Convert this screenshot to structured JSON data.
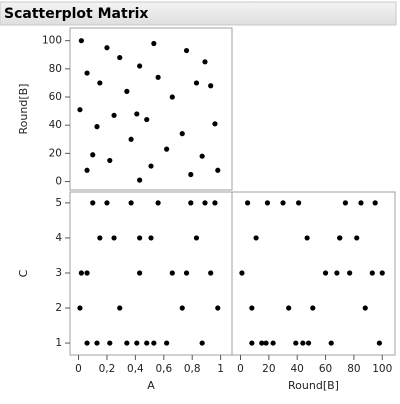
{
  "chart_data": {
    "type": "scatter_matrix",
    "title": "Scatterplot Matrix",
    "variables": [
      {
        "name": "A",
        "values": [
          0.02,
          0.06,
          0.01,
          0.06,
          0.1,
          0.13,
          0.15,
          0.2,
          0.22,
          0.25,
          0.29,
          0.34,
          0.37,
          0.41,
          0.43,
          0.43,
          0.48,
          0.51,
          0.53,
          0.56,
          0.62,
          0.66,
          0.73,
          0.76,
          0.79,
          0.83,
          0.87,
          0.89,
          0.93,
          0.96,
          0.98
        ],
        "lim": [
          -0.06,
          1.08
        ],
        "ticks": [
          0,
          {
            "value": 0.2,
            "label": "0,2"
          },
          {
            "value": 0.4,
            "label": "0,4"
          },
          {
            "value": 0.6,
            "label": "0,6"
          },
          {
            "value": 0.8,
            "label": "0,8"
          },
          1
        ]
      },
      {
        "name": "Round[B]",
        "values": [
          100,
          77,
          51,
          8,
          19,
          39,
          70,
          95,
          15,
          47,
          88,
          64,
          30,
          48,
          82,
          1,
          44,
          11,
          98,
          74,
          23,
          60,
          34,
          93,
          5,
          70,
          18,
          85,
          68,
          41,
          8
        ],
        "lim": [
          -6,
          109
        ],
        "ticks": [
          0,
          20,
          40,
          60,
          80,
          100
        ]
      },
      {
        "name": "C",
        "values": [
          3,
          3,
          2,
          1,
          5,
          1,
          4,
          5,
          1,
          4,
          2,
          1,
          5,
          1,
          4,
          3,
          1,
          4,
          1,
          5,
          1,
          3,
          2,
          3,
          5,
          4,
          1,
          5,
          3,
          5,
          2
        ],
        "lim": [
          0.66,
          5.31
        ],
        "ticks": [
          1,
          2,
          3,
          4,
          5
        ]
      }
    ],
    "color": "#000000"
  }
}
